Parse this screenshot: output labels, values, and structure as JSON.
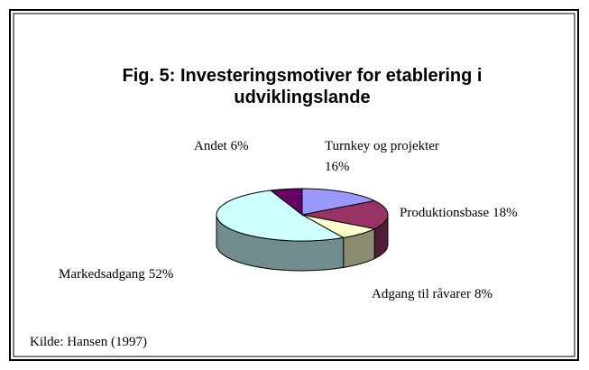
{
  "chart_data": {
    "type": "pie3d",
    "title": "Fig. 5: Investeringsmotiver for etablering i udviklingslande",
    "categories": [
      "Turnkey og projekter",
      "Produktionsbase",
      "Adgang til råvarer",
      "Markedsadgang",
      "Andet"
    ],
    "values": [
      16,
      18,
      8,
      52,
      6
    ],
    "value_labels": [
      "16%",
      "18%",
      "8%",
      "52%",
      "6%"
    ],
    "colors": [
      "#9999ff",
      "#993366",
      "#ffffcc",
      "#ccffff",
      "#660066"
    ],
    "source": "Kilde: Hansen (1997)"
  }
}
